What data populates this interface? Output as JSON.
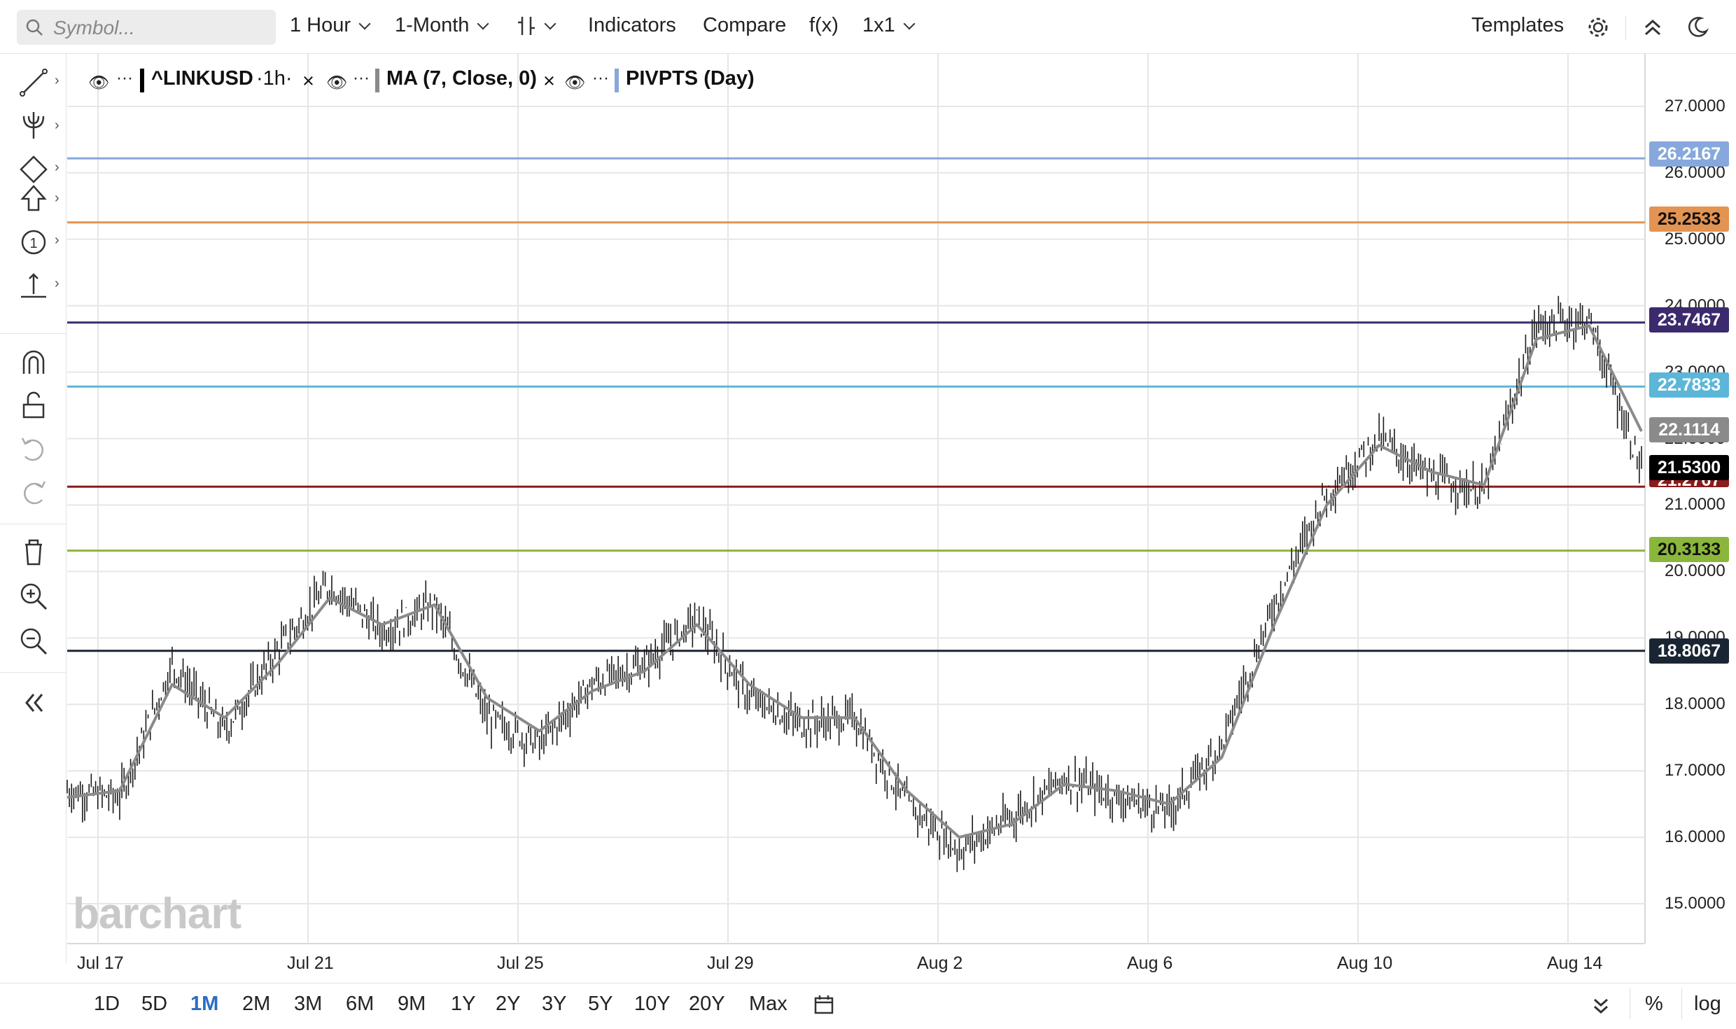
{
  "toolbar": {
    "search_placeholder": "Symbol...",
    "interval": "1 Hour",
    "period": "1-Month",
    "indicators": "Indicators",
    "compare": "Compare",
    "fx": "f(x)",
    "layout": "1x1",
    "templates": "Templates"
  },
  "legend": {
    "symbol": "^LINKUSD",
    "symbol_interval": "·1h·",
    "ma": "MA (7, Close, 0)",
    "pivots": "PIVPTS (Day)",
    "more": "···",
    "close": "×"
  },
  "watermark": "barchart",
  "range_buttons": [
    "1D",
    "5D",
    "1M",
    "2M",
    "3M",
    "6M",
    "9M",
    "1Y",
    "2Y",
    "3Y",
    "5Y",
    "10Y",
    "20Y",
    "Max"
  ],
  "active_range": "1M",
  "bottom_right": {
    "percent": "%",
    "log": "log"
  },
  "colors": {
    "pivot_r2": "#86a8dc",
    "pivot_r1": "#e39352",
    "pivot_pp": "#3b2a6e",
    "pivot_s1_light": "#5bb6d8",
    "pivot_s1": "#8b1a1a",
    "pivot_s2": "#8bb63c",
    "pivot_s3": "#1a2533",
    "ma_tag": "#8a8a8a",
    "last_price_tag": "#000000",
    "active_range": "#2b6cc4"
  },
  "chart_data": {
    "type": "line",
    "title": "^LINKUSD",
    "interval": "1h",
    "x_ticks": [
      "Jul 17",
      "Jul 21",
      "Jul 25",
      "Jul 29",
      "Aug 2",
      "Aug 6",
      "Aug 10",
      "Aug 14"
    ],
    "y_ticks": [
      "15.0000",
      "16.0000",
      "17.0000",
      "18.0000",
      "19.0000",
      "20.0000",
      "21.0000",
      "22.0000",
      "23.0000",
      "24.0000",
      "25.0000",
      "26.0000",
      "27.0000"
    ],
    "ylim": [
      14.4,
      27.8
    ],
    "grid": true,
    "series": [
      {
        "name": "^LINKUSD",
        "x": [
          "Jul 16",
          "Jul 17",
          "Jul 18",
          "Jul 19",
          "Jul 20",
          "Jul 21",
          "Jul 22",
          "Jul 23",
          "Jul 24",
          "Jul 25",
          "Jul 26",
          "Jul 27",
          "Jul 28",
          "Jul 29",
          "Jul 30",
          "Jul 31",
          "Aug 1",
          "Aug 2",
          "Aug 3",
          "Aug 4",
          "Aug 5",
          "Aug 6",
          "Aug 7",
          "Aug 8",
          "Aug 9",
          "Aug 10",
          "Aug 11",
          "Aug 12",
          "Aug 13",
          "Aug 14",
          "Aug 15"
        ],
        "values": [
          16.7,
          16.6,
          18.6,
          17.6,
          18.8,
          19.8,
          19.1,
          19.5,
          17.8,
          17.4,
          18.3,
          18.6,
          19.3,
          18.1,
          17.7,
          17.8,
          16.5,
          15.8,
          16.3,
          16.9,
          16.6,
          16.4,
          17.4,
          19.5,
          21.2,
          22.0,
          21.4,
          21.2,
          23.7,
          23.8,
          21.53
        ]
      },
      {
        "name": "MA (7, Close, 0)",
        "x": [
          "Jul 16",
          "Jul 17",
          "Jul 18",
          "Jul 19",
          "Jul 20",
          "Jul 21",
          "Jul 22",
          "Jul 23",
          "Jul 24",
          "Jul 25",
          "Jul 26",
          "Jul 27",
          "Jul 28",
          "Jul 29",
          "Jul 30",
          "Jul 31",
          "Aug 1",
          "Aug 2",
          "Aug 3",
          "Aug 4",
          "Aug 5",
          "Aug 6",
          "Aug 7",
          "Aug 8",
          "Aug 9",
          "Aug 10",
          "Aug 11",
          "Aug 12",
          "Aug 13",
          "Aug 14",
          "Aug 15"
        ],
        "values": [
          16.6,
          16.7,
          18.3,
          17.8,
          18.6,
          19.6,
          19.2,
          19.5,
          18.1,
          17.6,
          18.2,
          18.5,
          19.2,
          18.3,
          17.8,
          17.8,
          16.7,
          16.0,
          16.2,
          16.8,
          16.7,
          16.5,
          17.2,
          19.2,
          21.0,
          21.9,
          21.5,
          21.3,
          23.5,
          23.7,
          22.11
        ]
      }
    ],
    "pivot_levels": [
      26.2167,
      25.2533,
      23.7467,
      22.7833,
      21.2767,
      20.3133,
      18.8067
    ],
    "price_tags": {
      "r2": "26.2167",
      "r1": "25.2533",
      "pp": "23.7467",
      "s_upper": "22.7833",
      "ma": "22.1114",
      "last": "21.5300",
      "s1": "21.2767",
      "s2": "20.3133",
      "s3": "18.8067"
    }
  }
}
